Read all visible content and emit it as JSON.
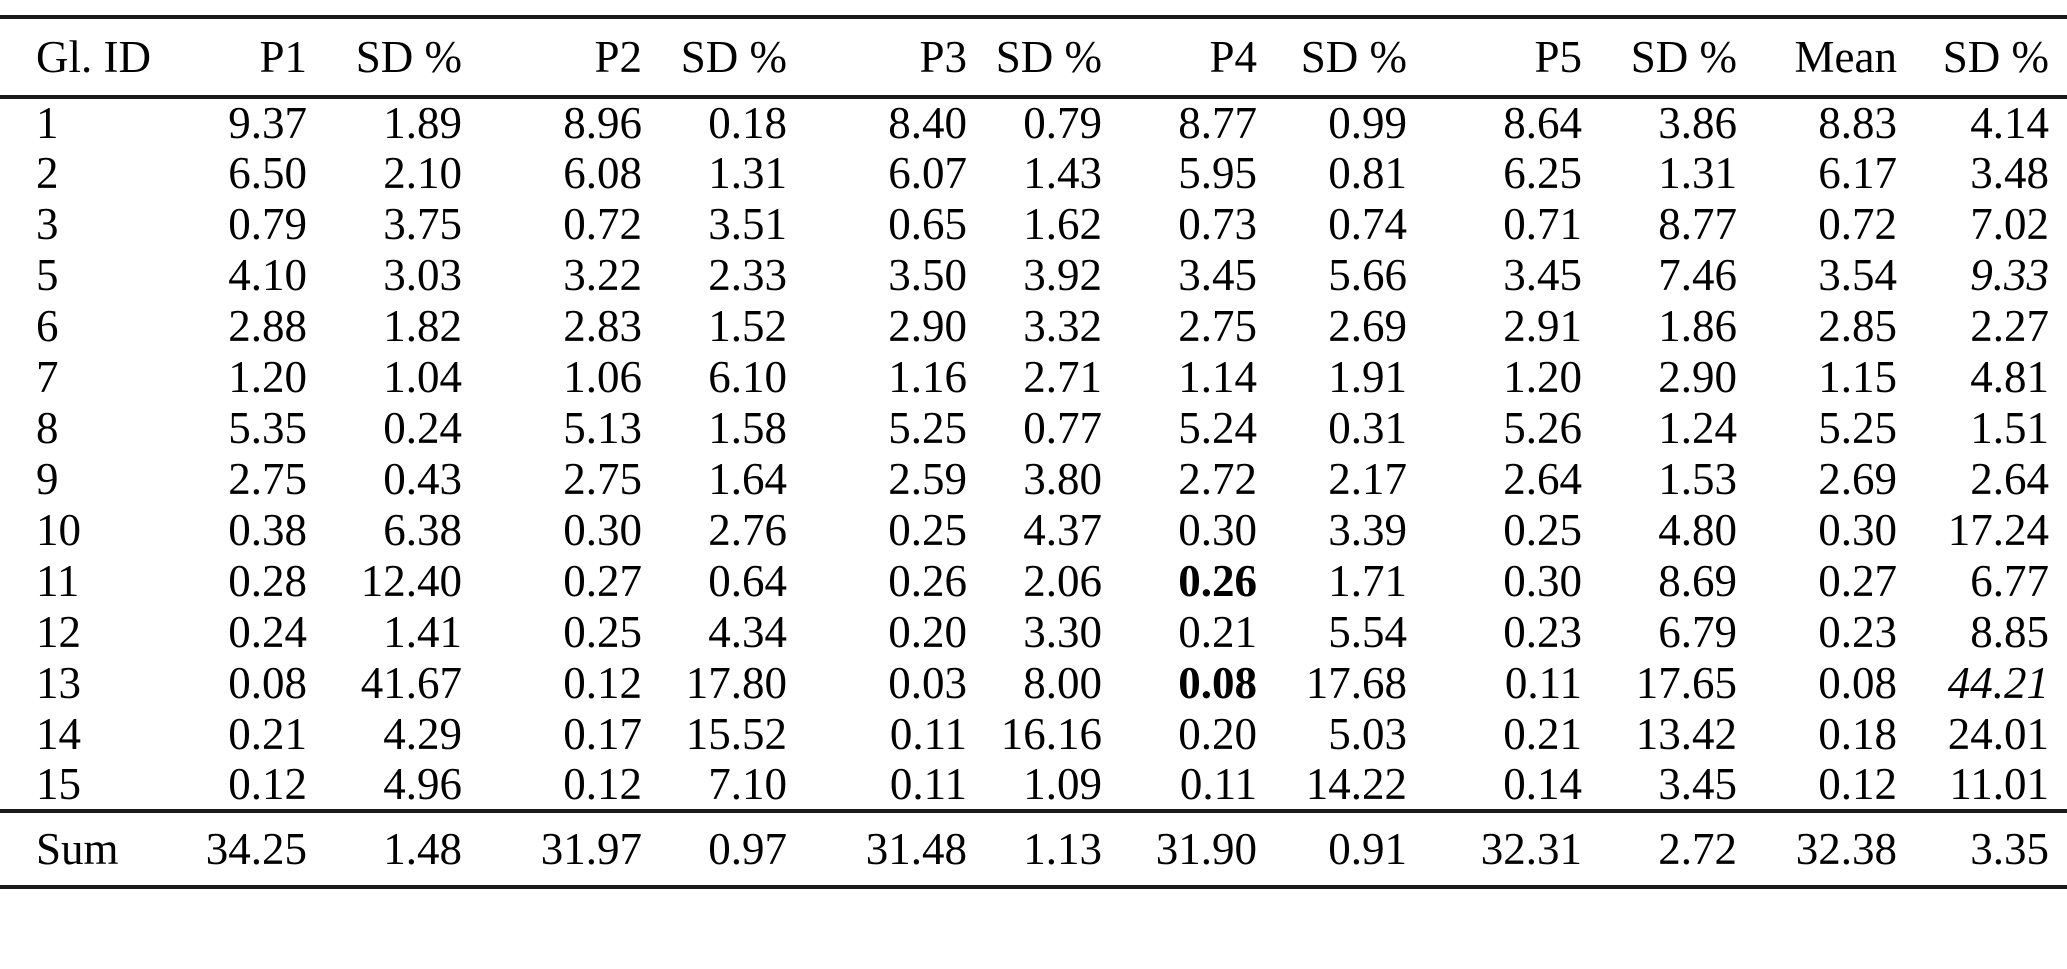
{
  "colors": {
    "background": "#ffffff",
    "text": "#000000",
    "rule": "#1a1a1a"
  },
  "table": {
    "columns": [
      "Gl. ID",
      "P1",
      "SD %",
      "P2",
      "SD %",
      "P3",
      "SD %",
      "P4",
      "SD %",
      "P5",
      "SD %",
      "Mean",
      "SD %"
    ],
    "rows": [
      {
        "id": "1",
        "cells": [
          "9.37",
          "1.89",
          "8.96",
          "0.18",
          "8.40",
          "0.79",
          "8.77",
          "0.99",
          "8.64",
          "3.86",
          "8.83",
          "4.14"
        ]
      },
      {
        "id": "2",
        "cells": [
          "6.50",
          "2.10",
          "6.08",
          "1.31",
          "6.07",
          "1.43",
          "5.95",
          "0.81",
          "6.25",
          "1.31",
          "6.17",
          "3.48"
        ]
      },
      {
        "id": "3",
        "cells": [
          "0.79",
          "3.75",
          "0.72",
          "3.51",
          "0.65",
          "1.62",
          "0.73",
          "0.74",
          "0.71",
          "8.77",
          "0.72",
          "7.02"
        ]
      },
      {
        "id": "5",
        "cells": [
          "4.10",
          "3.03",
          "3.22",
          "2.33",
          "3.50",
          "3.92",
          "3.45",
          "5.66",
          "3.45",
          "7.46",
          "3.54",
          {
            "v": "9.33",
            "style": "italic"
          }
        ]
      },
      {
        "id": "6",
        "cells": [
          "2.88",
          "1.82",
          "2.83",
          "1.52",
          "2.90",
          "3.32",
          "2.75",
          "2.69",
          "2.91",
          "1.86",
          "2.85",
          "2.27"
        ]
      },
      {
        "id": "7",
        "cells": [
          "1.20",
          "1.04",
          "1.06",
          "6.10",
          "1.16",
          "2.71",
          "1.14",
          "1.91",
          "1.20",
          "2.90",
          "1.15",
          "4.81"
        ]
      },
      {
        "id": "8",
        "cells": [
          "5.35",
          "0.24",
          "5.13",
          "1.58",
          "5.25",
          "0.77",
          "5.24",
          "0.31",
          "5.26",
          "1.24",
          "5.25",
          "1.51"
        ]
      },
      {
        "id": "9",
        "cells": [
          "2.75",
          "0.43",
          "2.75",
          "1.64",
          "2.59",
          "3.80",
          "2.72",
          "2.17",
          "2.64",
          "1.53",
          "2.69",
          "2.64"
        ]
      },
      {
        "id": "10",
        "cells": [
          "0.38",
          "6.38",
          "0.30",
          "2.76",
          "0.25",
          "4.37",
          "0.30",
          "3.39",
          "0.25",
          "4.80",
          "0.30",
          "17.24"
        ]
      },
      {
        "id": "11",
        "cells": [
          "0.28",
          "12.40",
          "0.27",
          "0.64",
          "0.26",
          "2.06",
          {
            "v": "0.26",
            "style": "bold"
          },
          "1.71",
          "0.30",
          "8.69",
          "0.27",
          "6.77"
        ]
      },
      {
        "id": "12",
        "cells": [
          "0.24",
          "1.41",
          "0.25",
          "4.34",
          "0.20",
          "3.30",
          "0.21",
          "5.54",
          "0.23",
          "6.79",
          "0.23",
          "8.85"
        ]
      },
      {
        "id": "13",
        "cells": [
          "0.08",
          "41.67",
          "0.12",
          "17.80",
          "0.03",
          "8.00",
          {
            "v": "0.08",
            "style": "bold"
          },
          "17.68",
          "0.11",
          "17.65",
          "0.08",
          {
            "v": "44.21",
            "style": "italic"
          }
        ]
      },
      {
        "id": "14",
        "cells": [
          "0.21",
          "4.29",
          "0.17",
          "15.52",
          "0.11",
          "16.16",
          "0.20",
          "5.03",
          "0.21",
          "13.42",
          "0.18",
          "24.01"
        ]
      },
      {
        "id": "15",
        "cells": [
          "0.12",
          "4.96",
          "0.12",
          "7.10",
          "0.11",
          "1.09",
          "0.11",
          "14.22",
          "0.14",
          "3.45",
          "0.12",
          "11.01"
        ]
      }
    ],
    "sum": {
      "label": "Sum",
      "cells": [
        "34.25",
        "1.48",
        "31.97",
        "0.97",
        "31.48",
        "1.13",
        "31.90",
        "0.91",
        "32.31",
        "2.72",
        "32.38",
        "3.35"
      ]
    }
  }
}
